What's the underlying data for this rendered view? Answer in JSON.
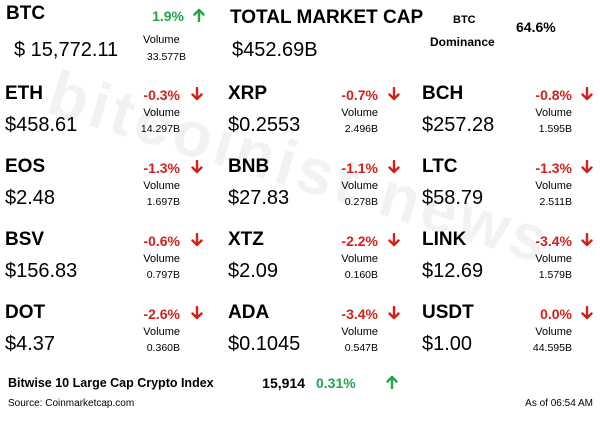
{
  "btc": {
    "symbol": "BTC",
    "change": "1.9%",
    "trend": "up",
    "color": "#1fa64a",
    "price": "$ 15,772.11",
    "volume_label": "Volume",
    "volume": "33.577B"
  },
  "total_market_cap": {
    "label": "TOTAL MARKET CAP",
    "value": "$452.69B"
  },
  "btc_dominance": {
    "label_line1": "BTC",
    "label_line2": "Dominance",
    "value": "64.6%"
  },
  "coins": [
    {
      "symbol": "ETH",
      "change": "-0.3%",
      "trend": "down",
      "color": "#d0221c",
      "price": "$458.61",
      "volume_label": "Volume",
      "volume": "14.297B"
    },
    {
      "symbol": "XRP",
      "change": "-0.7%",
      "trend": "down",
      "color": "#d0221c",
      "price": "$0.2553",
      "volume_label": "Volume",
      "volume": "2.496B"
    },
    {
      "symbol": "BCH",
      "change": "-0.8%",
      "trend": "down",
      "color": "#d0221c",
      "price": "$257.28",
      "volume_label": "Volume",
      "volume": "1.595B"
    },
    {
      "symbol": "EOS",
      "change": "-1.3%",
      "trend": "down",
      "color": "#d0221c",
      "price": "$2.48",
      "volume_label": "Volume",
      "volume": "1.697B"
    },
    {
      "symbol": "BNB",
      "change": "-1.1%",
      "trend": "down",
      "color": "#d0221c",
      "price": "$27.83",
      "volume_label": "Volume",
      "volume": "0.278B"
    },
    {
      "symbol": "LTC",
      "change": "-1.3%",
      "trend": "down",
      "color": "#d0221c",
      "price": "$58.79",
      "volume_label": "Volume",
      "volume": "2.511B"
    },
    {
      "symbol": "BSV",
      "change": "-0.6%",
      "trend": "down",
      "color": "#d0221c",
      "price": "$156.83",
      "volume_label": "Volume",
      "volume": "0.797B"
    },
    {
      "symbol": "XTZ",
      "change": "-2.2%",
      "trend": "down",
      "color": "#d0221c",
      "price": "$2.09",
      "volume_label": "Volume",
      "volume": "0.160B"
    },
    {
      "symbol": "LINK",
      "change": "-3.4%",
      "trend": "down",
      "color": "#d0221c",
      "price": "$12.69",
      "volume_label": "Volume",
      "volume": "1.579B"
    },
    {
      "symbol": "DOT",
      "change": "-2.6%",
      "trend": "down",
      "color": "#d0221c",
      "price": "$4.37",
      "volume_label": "Volume",
      "volume": "0.360B"
    },
    {
      "symbol": "ADA",
      "change": "-3.4%",
      "trend": "down",
      "color": "#d0221c",
      "price": "$0.1045",
      "volume_label": "Volume",
      "volume": "0.547B"
    },
    {
      "symbol": "USDT",
      "change": "0.0%",
      "trend": "down",
      "color": "#d0221c",
      "price": "$1.00",
      "volume_label": "Volume",
      "volume": "44.595B"
    }
  ],
  "index": {
    "name": "Bitwise 10 Large Cap Crypto Index",
    "value": "15,914",
    "change": "0.31%",
    "trend": "up",
    "color": "#1fa64a"
  },
  "source": "Source: Coinmarketcap.com",
  "as_of": "As of 06:54 AM",
  "watermark": "bitcoinist news"
}
